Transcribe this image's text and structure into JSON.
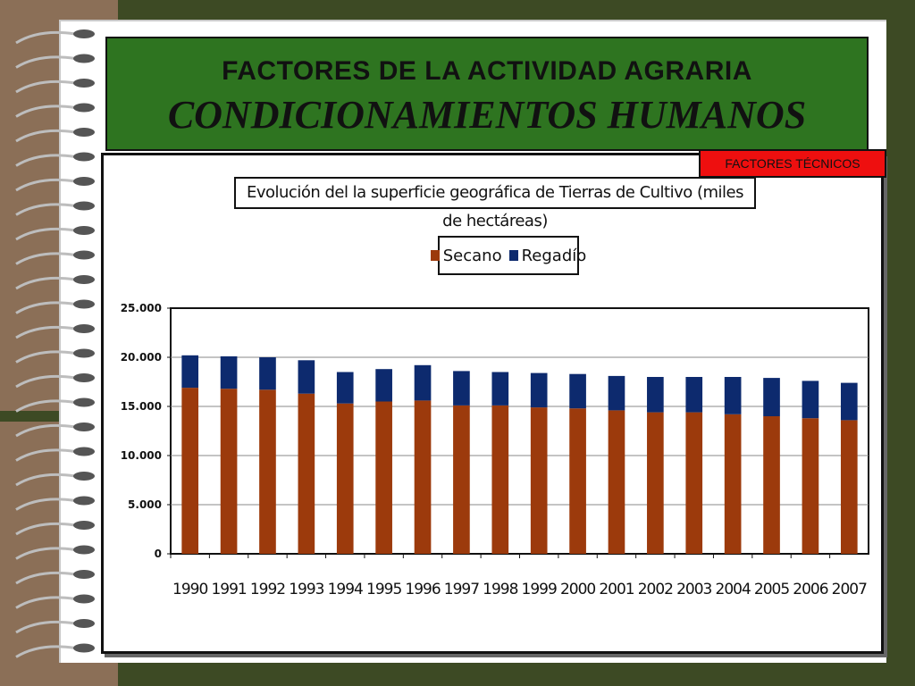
{
  "header": {
    "title": "FACTORES DE LA ACTIVIDAD AGRARIA",
    "subtitle": "CONDICIONAMIENTOS HUMANOS",
    "badge": "FACTORES TÉCNICOS"
  },
  "colors": {
    "background": "#3d4a24",
    "header_green": "#2e7420",
    "badge_red": "#ee0f0f",
    "secano": "#9c3a0c",
    "regadio": "#0d2a6e"
  },
  "chart_data": {
    "type": "bar",
    "stacked": true,
    "title": "Evolución del la superficie geográfica de Tierras de Cultivo (miles de hectáreas)",
    "xlabel": "",
    "ylabel": "",
    "ylim": [
      0,
      25000
    ],
    "yticks": [
      "0",
      "5.000",
      "10.000",
      "15.000",
      "20.000",
      "25.000"
    ],
    "grid": true,
    "legend_position": "top",
    "categories": [
      "1990",
      "1991",
      "1992",
      "1993",
      "1994",
      "1995",
      "1996",
      "1997",
      "1998",
      "1999",
      "2000",
      "2001",
      "2002",
      "2003",
      "2004",
      "2005",
      "2006",
      "2007"
    ],
    "series": [
      {
        "name": "Secano",
        "color": "#9c3a0c",
        "values": [
          16900,
          16800,
          16700,
          16300,
          15300,
          15500,
          15600,
          15100,
          15100,
          14900,
          14800,
          14600,
          14400,
          14400,
          14200,
          14000,
          13800,
          13600
        ]
      },
      {
        "name": "Regadío",
        "color": "#0d2a6e",
        "values": [
          3300,
          3300,
          3300,
          3400,
          3200,
          3300,
          3600,
          3500,
          3400,
          3500,
          3500,
          3500,
          3600,
          3600,
          3800,
          3900,
          3800,
          3800
        ]
      }
    ]
  }
}
